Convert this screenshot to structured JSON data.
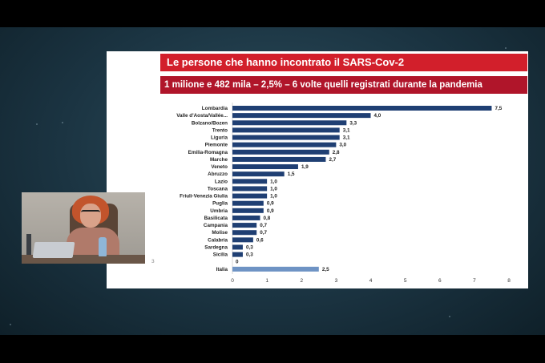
{
  "slide": {
    "title": "Le  persone che hanno incontrato il SARS-Cov-2",
    "subtitle": "1 milione e 482 mila – 2,5% – 6 volte quelli registrati durante la pandemia",
    "page_number": "3"
  },
  "colors": {
    "title_bg": "#d21f2b",
    "subtitle_bg": "#b0152a",
    "bar_regions": "#1f3f73",
    "bar_italia": "#6e93c4",
    "background": "#1b3442"
  },
  "webcam": {
    "icon": "speaker-video-icon"
  },
  "chart_data": {
    "type": "bar",
    "orientation": "horizontal",
    "categories": [
      "Lombardia",
      "Valle d'Aosta/Vallée...",
      "Bolzano/Bozen",
      "Trento",
      "Liguria",
      "Piemonte",
      "Emilia-Romagna",
      "Marche",
      "Veneto",
      "Abruzzo",
      "Lazio",
      "Toscana",
      "Friuli-Venezia Giulia",
      "Puglia",
      "Umbria",
      "Basilicata",
      "Campania",
      "Molise",
      "Calabria",
      "Sardegna",
      "Sicilia",
      "",
      "Italia"
    ],
    "values": [
      7.5,
      4.0,
      3.3,
      3.1,
      3.1,
      3.0,
      2.8,
      2.7,
      1.9,
      1.5,
      1.0,
      1.0,
      1.0,
      0.9,
      0.9,
      0.8,
      0.7,
      0.7,
      0.6,
      0.3,
      0.3,
      0,
      2.5
    ],
    "value_labels": [
      "7,5",
      "4,0",
      "3,3",
      "3,1",
      "3,1",
      "3,0",
      "2,8",
      "2,7",
      "1,9",
      "1,5",
      "1,0",
      "1,0",
      "1,0",
      "0,9",
      "0,9",
      "0,8",
      "0,7",
      "0,7",
      "0,6",
      "0,3",
      "0,3",
      "0",
      "2,5"
    ],
    "highlight_index": 22,
    "xlim": [
      0,
      8
    ],
    "xticks": [
      "0",
      "1",
      "2",
      "3",
      "4",
      "5",
      "6",
      "7",
      "8"
    ],
    "title": "",
    "xlabel": "",
    "ylabel": "",
    "grid": false,
    "legend": "none"
  }
}
